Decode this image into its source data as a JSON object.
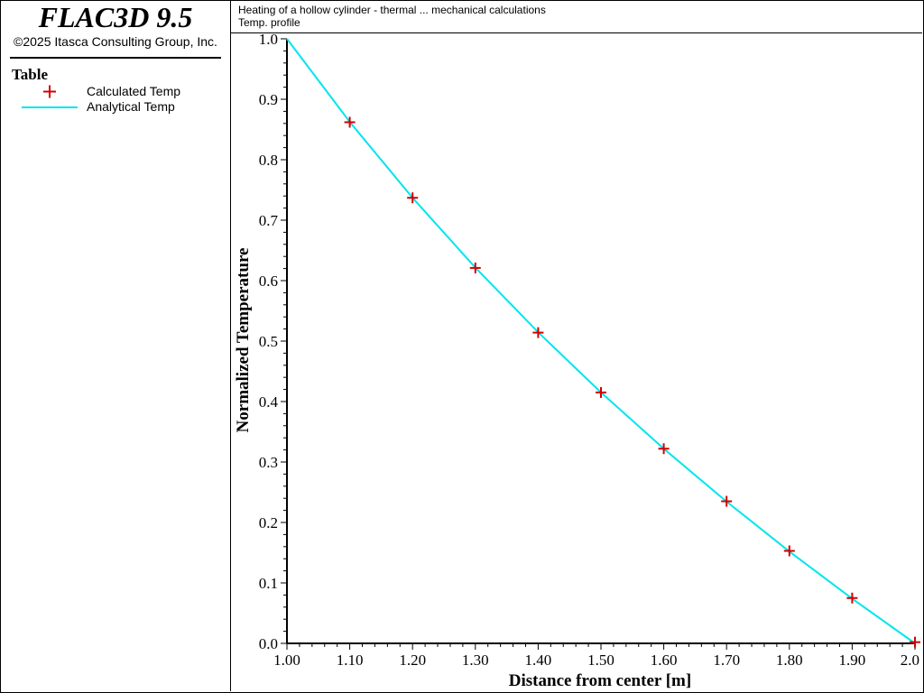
{
  "app": {
    "title": "FLAC3D 9.5",
    "copyright": "©2025 Itasca Consulting Group, Inc."
  },
  "legend": {
    "title": "Table",
    "items": [
      {
        "label": "Calculated Temp",
        "marker": "plus-icon",
        "color": "#d40000"
      },
      {
        "label": "Analytical Temp",
        "marker": "line",
        "color": "#00e5ee"
      }
    ]
  },
  "header": {
    "title": "Heating of a hollow cylinder - thermal ... mechanical calculations",
    "subtitle": "Temp. profile"
  },
  "chart_data": {
    "type": "line",
    "xlabel": "Distance from center [m]",
    "ylabel": "Normalized Temperature",
    "xlim": [
      1.0,
      2.0
    ],
    "ylim": [
      0.0,
      1.0
    ],
    "x_ticks": [
      "1.00",
      "1.10",
      "1.20",
      "1.30",
      "1.40",
      "1.50",
      "1.60",
      "1.70",
      "1.80",
      "1.90",
      "2.0"
    ],
    "y_ticks": [
      "0.0",
      "0.1",
      "0.2",
      "0.3",
      "0.4",
      "0.5",
      "0.6",
      "0.7",
      "0.8",
      "0.9",
      "1.0"
    ],
    "grid": false,
    "series": [
      {
        "name": "Calculated Temp",
        "style": "markers",
        "color": "#d40000",
        "x": [
          1.1,
          1.2,
          1.3,
          1.4,
          1.5,
          1.6,
          1.7,
          1.8,
          1.9,
          2.0
        ],
        "y": [
          0.862,
          0.737,
          0.621,
          0.514,
          0.415,
          0.322,
          0.235,
          0.153,
          0.075,
          0.002
        ]
      },
      {
        "name": "Analytical Temp",
        "style": "line",
        "color": "#00e5ee",
        "x": [
          1.0,
          1.1,
          1.2,
          1.3,
          1.4,
          1.5,
          1.6,
          1.7,
          1.8,
          1.9,
          2.0
        ],
        "y": [
          1.0,
          0.8625,
          0.737,
          0.6215,
          0.5146,
          0.415,
          0.3219,
          0.2345,
          0.152,
          0.074,
          0.0
        ]
      }
    ]
  }
}
